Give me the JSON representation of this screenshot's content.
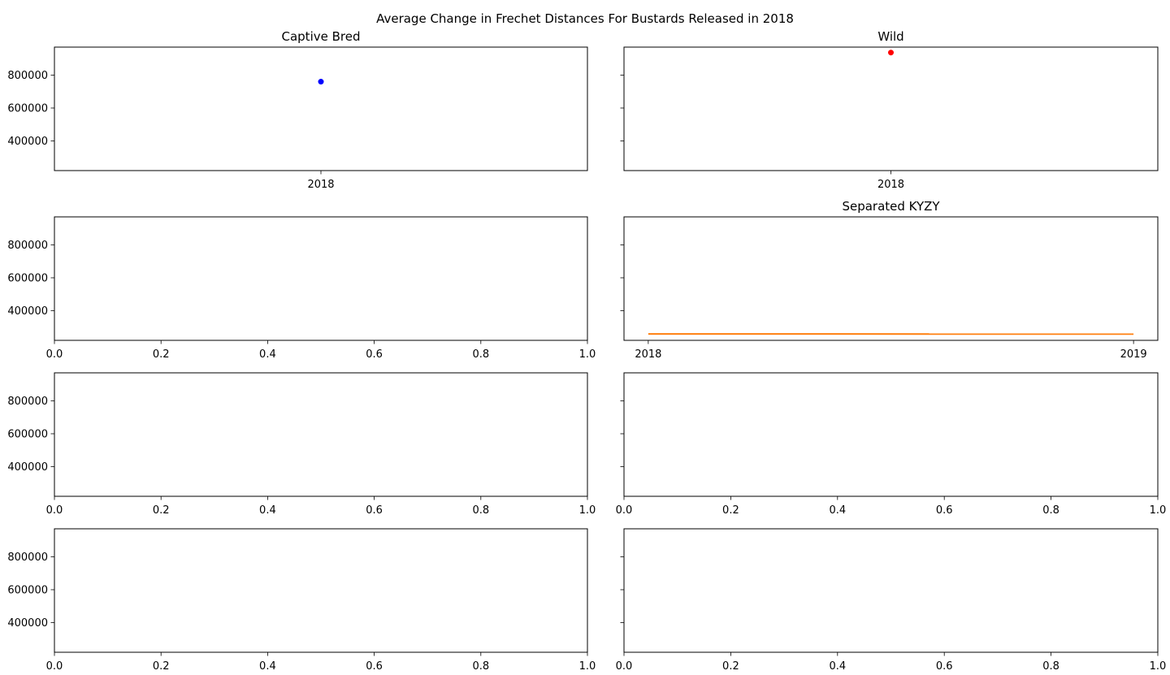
{
  "figure": {
    "title": "Average Change in Frechet Distances For Bustards Released in 2018"
  },
  "chart_data": [
    {
      "type": "scatter",
      "title": "Captive Bred",
      "x_ticks": [
        "2018"
      ],
      "y_ticks": [
        "400000",
        "600000",
        "800000"
      ],
      "ylim": [
        220000,
        970000
      ],
      "series": [
        {
          "x": [
            "2018"
          ],
          "y": [
            760000
          ],
          "color": "#0000ff"
        }
      ]
    },
    {
      "type": "scatter",
      "title": "Wild",
      "x_ticks": [
        "2018"
      ],
      "y_ticks": [],
      "ylim": [
        220000,
        970000
      ],
      "series": [
        {
          "x": [
            "2018"
          ],
          "y": [
            937000
          ],
          "color": "#ff0000"
        }
      ]
    },
    {
      "type": "line",
      "title": "",
      "x_ticks": [
        "0.0",
        "0.2",
        "0.4",
        "0.6",
        "0.8",
        "1.0"
      ],
      "y_ticks": [
        "400000",
        "600000",
        "800000"
      ],
      "xlim": [
        0,
        1
      ],
      "ylim": [
        220000,
        970000
      ],
      "series": []
    },
    {
      "type": "line",
      "title": "Separated KYZY",
      "x_ticks": [
        "2018",
        "2019"
      ],
      "y_ticks": [],
      "ylim": [
        220000,
        970000
      ],
      "series": [
        {
          "x": [
            "2018",
            "2019"
          ],
          "y": [
            259000,
            258000
          ],
          "color": "#ff7f0e"
        }
      ]
    },
    {
      "type": "line",
      "title": "",
      "x_ticks": [
        "0.0",
        "0.2",
        "0.4",
        "0.6",
        "0.8",
        "1.0"
      ],
      "y_ticks": [
        "400000",
        "600000",
        "800000"
      ],
      "xlim": [
        0,
        1
      ],
      "ylim": [
        220000,
        970000
      ],
      "series": []
    },
    {
      "type": "line",
      "title": "",
      "x_ticks": [
        "0.0",
        "0.2",
        "0.4",
        "0.6",
        "0.8",
        "1.0"
      ],
      "y_ticks": [],
      "xlim": [
        0,
        1
      ],
      "ylim": [
        220000,
        970000
      ],
      "series": []
    },
    {
      "type": "line",
      "title": "",
      "x_ticks": [
        "0.0",
        "0.2",
        "0.4",
        "0.6",
        "0.8",
        "1.0"
      ],
      "y_ticks": [
        "400000",
        "600000",
        "800000"
      ],
      "xlim": [
        0,
        1
      ],
      "ylim": [
        220000,
        970000
      ],
      "series": []
    },
    {
      "type": "line",
      "title": "",
      "x_ticks": [
        "0.0",
        "0.2",
        "0.4",
        "0.6",
        "0.8",
        "1.0"
      ],
      "y_ticks": [],
      "xlim": [
        0,
        1
      ],
      "ylim": [
        220000,
        970000
      ],
      "series": []
    }
  ]
}
